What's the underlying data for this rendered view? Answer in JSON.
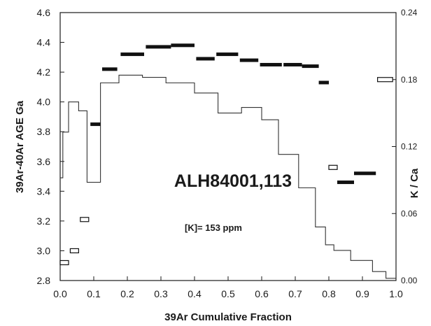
{
  "chart_data": {
    "type": "step",
    "xlabel": "39Ar Cumulative Fraction",
    "ylabel_left": "39Ar-40Ar AGE Ga",
    "ylabel_right": "K / Ca",
    "annotations": [
      "ALH84001,113",
      "[K]= 153 ppm"
    ],
    "xlim": [
      0.0,
      1.0
    ],
    "ylim_left": [
      2.8,
      4.6
    ],
    "ylim_right": [
      0.0,
      0.24
    ],
    "x_ticks": [
      "0.0",
      "0.1",
      "0.2",
      "0.3",
      "0.4",
      "0.5",
      "0.6",
      "0.7",
      "0.8",
      "0.9",
      "1.0"
    ],
    "y_left_ticks": [
      "2.8",
      "3.0",
      "3.2",
      "3.4",
      "3.6",
      "3.8",
      "4.0",
      "4.2",
      "4.4",
      "4.6"
    ],
    "y_right_ticks": [
      "0.00",
      "0.06",
      "0.12",
      "0.18",
      "0.24"
    ],
    "grid": false,
    "age_steps": [
      {
        "x0": 0.0,
        "x1": 0.025,
        "age": 2.92,
        "style": "open"
      },
      {
        "x0": 0.03,
        "x1": 0.055,
        "age": 3.0,
        "style": "open"
      },
      {
        "x0": 0.06,
        "x1": 0.085,
        "age": 3.21,
        "style": "open"
      },
      {
        "x0": 0.09,
        "x1": 0.12,
        "age": 3.85,
        "style": "solid"
      },
      {
        "x0": 0.125,
        "x1": 0.17,
        "age": 4.22,
        "style": "solid"
      },
      {
        "x0": 0.18,
        "x1": 0.25,
        "age": 4.32,
        "style": "solid"
      },
      {
        "x0": 0.255,
        "x1": 0.33,
        "age": 4.37,
        "style": "solid"
      },
      {
        "x0": 0.33,
        "x1": 0.4,
        "age": 4.38,
        "style": "solid"
      },
      {
        "x0": 0.405,
        "x1": 0.46,
        "age": 4.29,
        "style": "solid"
      },
      {
        "x0": 0.465,
        "x1": 0.53,
        "age": 4.32,
        "style": "solid"
      },
      {
        "x0": 0.535,
        "x1": 0.59,
        "age": 4.28,
        "style": "solid"
      },
      {
        "x0": 0.595,
        "x1": 0.66,
        "age": 4.25,
        "style": "solid"
      },
      {
        "x0": 0.665,
        "x1": 0.72,
        "age": 4.25,
        "style": "solid"
      },
      {
        "x0": 0.72,
        "x1": 0.77,
        "age": 4.24,
        "style": "solid"
      },
      {
        "x0": 0.77,
        "x1": 0.8,
        "age": 4.13,
        "style": "solid"
      },
      {
        "x0": 0.8,
        "x1": 0.825,
        "age": 3.56,
        "style": "open"
      },
      {
        "x0": 0.825,
        "x1": 0.875,
        "age": 3.46,
        "style": "solid"
      },
      {
        "x0": 0.875,
        "x1": 0.94,
        "age": 3.52,
        "style": "solid"
      },
      {
        "x0": 0.945,
        "x1": 0.99,
        "age": 4.15,
        "style": "open"
      }
    ],
    "k_ca_steps": [
      {
        "x0": 0.0,
        "x1": 0.008,
        "kca": 0.092
      },
      {
        "x0": 0.008,
        "x1": 0.025,
        "kca": 0.133
      },
      {
        "x0": 0.025,
        "x1": 0.055,
        "kca": 0.16
      },
      {
        "x0": 0.055,
        "x1": 0.08,
        "kca": 0.152
      },
      {
        "x0": 0.08,
        "x1": 0.12,
        "kca": 0.088
      },
      {
        "x0": 0.12,
        "x1": 0.175,
        "kca": 0.177
      },
      {
        "x0": 0.175,
        "x1": 0.245,
        "kca": 0.184
      },
      {
        "x0": 0.245,
        "x1": 0.315,
        "kca": 0.182
      },
      {
        "x0": 0.315,
        "x1": 0.4,
        "kca": 0.177
      },
      {
        "x0": 0.4,
        "x1": 0.47,
        "kca": 0.168
      },
      {
        "x0": 0.47,
        "x1": 0.54,
        "kca": 0.15
      },
      {
        "x0": 0.54,
        "x1": 0.6,
        "kca": 0.155
      },
      {
        "x0": 0.6,
        "x1": 0.65,
        "kca": 0.144
      },
      {
        "x0": 0.65,
        "x1": 0.71,
        "kca": 0.113
      },
      {
        "x0": 0.71,
        "x1": 0.76,
        "kca": 0.083
      },
      {
        "x0": 0.76,
        "x1": 0.79,
        "kca": 0.048
      },
      {
        "x0": 0.79,
        "x1": 0.815,
        "kca": 0.032
      },
      {
        "x0": 0.815,
        "x1": 0.865,
        "kca": 0.027
      },
      {
        "x0": 0.865,
        "x1": 0.93,
        "kca": 0.018
      },
      {
        "x0": 0.93,
        "x1": 0.97,
        "kca": 0.008
      },
      {
        "x0": 0.97,
        "x1": 1.0,
        "kca": 0.002
      }
    ]
  }
}
